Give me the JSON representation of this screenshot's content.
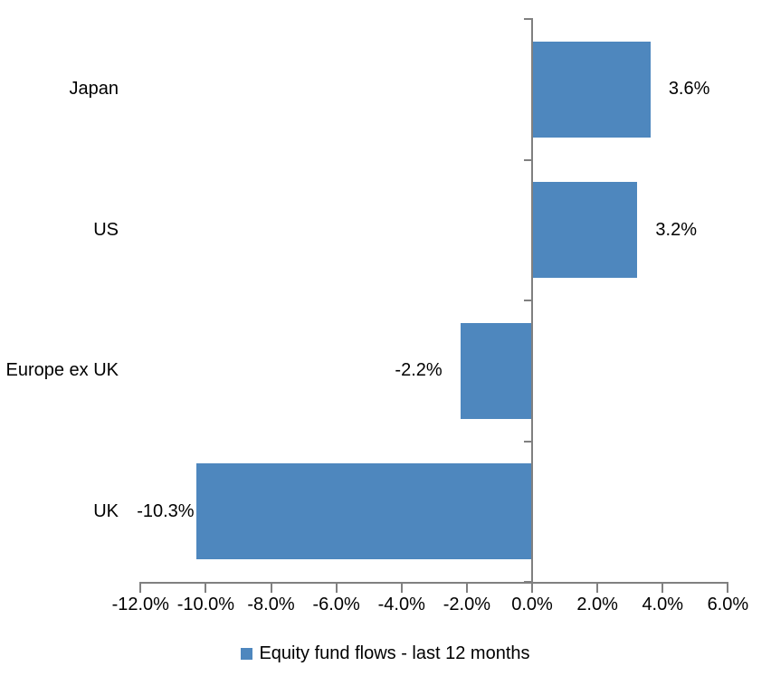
{
  "chart_data": {
    "type": "bar",
    "orientation": "horizontal",
    "title": "",
    "categories": [
      "Japan",
      "US",
      "Europe ex UK",
      "UK"
    ],
    "series": [
      {
        "name": "Equity fund flows - last 12 months",
        "values": [
          3.6,
          3.2,
          -2.2,
          -10.3
        ],
        "value_labels": [
          "3.6%",
          "3.2%",
          "-2.2%",
          "-10.3%"
        ],
        "color": "#4E87BE"
      }
    ],
    "xlabel": "",
    "ylabel": "",
    "xlim": [
      -12,
      6
    ],
    "x_ticks": [
      -12,
      -10,
      -8,
      -6,
      -4,
      -2,
      0,
      2,
      4,
      6
    ],
    "x_tick_labels": [
      "-12.0%",
      "-10.0%",
      "-8.0%",
      "-6.0%",
      "-4.0%",
      "-2.0%",
      "0.0%",
      "2.0%",
      "4.0%",
      "6.0%"
    ],
    "grid": false,
    "legend_position": "bottom",
    "colors": {
      "bar": "#4E87BE",
      "axis": "#808080",
      "text": "#000000",
      "background": "#FFFFFF"
    }
  },
  "legend": {
    "label": "Equity fund flows - last 12 months"
  }
}
